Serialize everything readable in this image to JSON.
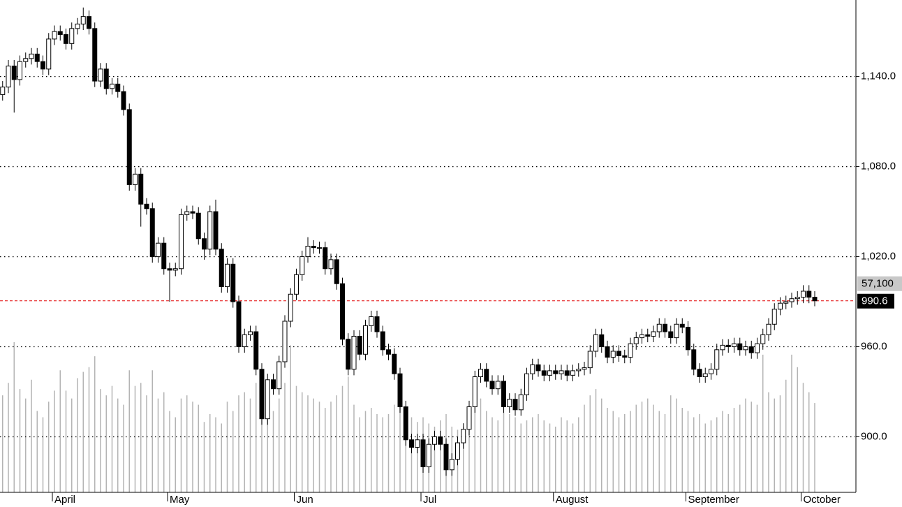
{
  "chart_data": {
    "type": "candlestick",
    "categories": [
      null,
      null,
      null,
      null,
      null,
      null,
      null,
      null,
      null,
      "April",
      null,
      null,
      null,
      null,
      null,
      null,
      null,
      null,
      null,
      null,
      null,
      null,
      null,
      null,
      null,
      null,
      null,
      null,
      null,
      "May",
      null,
      null,
      null,
      null,
      null,
      null,
      null,
      null,
      null,
      null,
      null,
      null,
      null,
      null,
      null,
      null,
      null,
      null,
      null,
      null,
      null,
      "Jun",
      null,
      null,
      null,
      null,
      null,
      null,
      null,
      null,
      null,
      null,
      null,
      null,
      null,
      null,
      null,
      null,
      null,
      null,
      null,
      null,
      null,
      "Jul",
      null,
      null,
      null,
      null,
      null,
      null,
      null,
      null,
      null,
      null,
      null,
      null,
      null,
      null,
      null,
      null,
      null,
      null,
      null,
      null,
      null,
      null,
      "August",
      null,
      null,
      null,
      null,
      null,
      null,
      null,
      null,
      null,
      null,
      null,
      null,
      null,
      null,
      null,
      null,
      null,
      null,
      null,
      null,
      null,
      null,
      "September",
      null,
      null,
      null,
      null,
      null,
      null,
      null,
      null,
      null,
      null,
      null,
      null,
      null,
      null,
      null,
      null,
      null,
      null,
      null,
      "October",
      null,
      null
    ],
    "open": [
      1128,
      1133,
      1147,
      1138,
      1150,
      1152,
      1155,
      1150,
      1145,
      1165,
      1170,
      1168,
      1162,
      1172,
      1175,
      1180,
      1172,
      1137,
      1145,
      1132,
      1135,
      1130,
      1118,
      1068,
      1075,
      1055,
      1052,
      1020,
      1029,
      1012,
      1011,
      1012,
      1048,
      1050,
      1049,
      1032,
      1025,
      1050,
      1025,
      1000,
      1015,
      990,
      960,
      968,
      970,
      945,
      912,
      938,
      932,
      950,
      977,
      995,
      1008,
      1020,
      1027,
      1026,
      1026,
      1012,
      1018,
      1002,
      965,
      945,
      967,
      955,
      974,
      980,
      970,
      958,
      955,
      942,
      920,
      898,
      893,
      898,
      880,
      895,
      900,
      895,
      878,
      885,
      896,
      905,
      920,
      940,
      945,
      937,
      932,
      937,
      920,
      925,
      918,
      928,
      942,
      948,
      944,
      941,
      944,
      942,
      944,
      941,
      944,
      945,
      946,
      957,
      968,
      960,
      953,
      957,
      954,
      953,
      962,
      966,
      968,
      967,
      970,
      975,
      970,
      966,
      975,
      973,
      958,
      945,
      940,
      942,
      945,
      958,
      961,
      960,
      962,
      958,
      960,
      956,
      962,
      968,
      975,
      985,
      989,
      990,
      992,
      993,
      997,
      993
    ],
    "high": [
      1137,
      1151,
      1151,
      1154,
      1156,
      1159,
      1159,
      1154,
      1169,
      1174,
      1174,
      1172,
      1176,
      1179,
      1186,
      1184,
      1176,
      1149,
      1149,
      1139,
      1139,
      1134,
      1122,
      1079,
      1079,
      1059,
      1056,
      1033,
      1033,
      1016,
      1016,
      1052,
      1054,
      1054,
      1053,
      1036,
      1054,
      1058,
      1029,
      1019,
      1019,
      994,
      972,
      974,
      974,
      949,
      942,
      942,
      954,
      981,
      999,
      1012,
      1024,
      1033,
      1031,
      1030,
      1030,
      1022,
      1022,
      1006,
      969,
      971,
      971,
      978,
      984,
      984,
      974,
      962,
      959,
      946,
      924,
      902,
      902,
      902,
      899,
      904,
      904,
      899,
      889,
      900,
      909,
      924,
      944,
      949,
      949,
      941,
      941,
      941,
      929,
      929,
      932,
      946,
      952,
      952,
      948,
      948,
      948,
      948,
      948,
      948,
      949,
      950,
      961,
      972,
      972,
      964,
      961,
      961,
      958,
      966,
      970,
      972,
      972,
      974,
      979,
      979,
      974,
      979,
      979,
      977,
      962,
      949,
      946,
      949,
      962,
      965,
      965,
      966,
      966,
      964,
      964,
      966,
      972,
      979,
      989,
      993,
      994,
      996,
      997,
      1001,
      1001,
      997
    ],
    "low": [
      1124,
      1129,
      1116,
      1134,
      1146,
      1148,
      1146,
      1141,
      1141,
      1161,
      1164,
      1158,
      1158,
      1168,
      1171,
      1168,
      1133,
      1133,
      1128,
      1128,
      1126,
      1114,
      1064,
      1064,
      1040,
      1048,
      1016,
      1016,
      1008,
      990,
      1007,
      1008,
      1044,
      1045,
      1028,
      1018,
      1021,
      1021,
      996,
      996,
      986,
      956,
      956,
      964,
      941,
      908,
      908,
      928,
      928,
      946,
      973,
      991,
      1004,
      1016,
      1022,
      1022,
      1008,
      1008,
      998,
      961,
      941,
      941,
      951,
      951,
      970,
      966,
      954,
      951,
      938,
      916,
      894,
      889,
      889,
      876,
      876,
      891,
      891,
      874,
      874,
      881,
      892,
      901,
      916,
      936,
      933,
      928,
      928,
      916,
      916,
      914,
      914,
      924,
      938,
      940,
      937,
      937,
      938,
      938,
      937,
      937,
      940,
      941,
      942,
      953,
      956,
      949,
      949,
      950,
      949,
      949,
      958,
      962,
      963,
      963,
      966,
      966,
      962,
      962,
      969,
      954,
      941,
      936,
      936,
      938,
      941,
      954,
      956,
      956,
      954,
      954,
      952,
      952,
      958,
      964,
      971,
      981,
      985,
      986,
      988,
      989,
      989,
      987
    ],
    "close": [
      1133,
      1147,
      1138,
      1150,
      1152,
      1155,
      1150,
      1145,
      1165,
      1170,
      1168,
      1162,
      1172,
      1175,
      1180,
      1172,
      1137,
      1145,
      1132,
      1135,
      1130,
      1118,
      1068,
      1075,
      1055,
      1052,
      1020,
      1029,
      1012,
      1011,
      1012,
      1048,
      1050,
      1049,
      1032,
      1025,
      1050,
      1025,
      1000,
      1015,
      990,
      960,
      968,
      970,
      945,
      912,
      938,
      932,
      950,
      977,
      995,
      1008,
      1020,
      1027,
      1026,
      1026,
      1012,
      1018,
      1002,
      965,
      945,
      967,
      955,
      974,
      980,
      970,
      958,
      955,
      942,
      920,
      898,
      893,
      898,
      880,
      895,
      900,
      895,
      878,
      885,
      896,
      905,
      920,
      940,
      945,
      937,
      932,
      937,
      920,
      925,
      918,
      928,
      942,
      948,
      944,
      941,
      944,
      942,
      944,
      941,
      944,
      945,
      946,
      957,
      968,
      960,
      953,
      957,
      954,
      953,
      962,
      966,
      968,
      967,
      970,
      975,
      970,
      966,
      975,
      973,
      958,
      945,
      940,
      942,
      945,
      958,
      961,
      960,
      962,
      958,
      960,
      956,
      962,
      968,
      975,
      985,
      989,
      990,
      992,
      993,
      997,
      993,
      990.6
    ],
    "volume": [
      62000,
      70000,
      96000,
      66000,
      60000,
      72000,
      52000,
      48000,
      58000,
      65000,
      78000,
      65000,
      60000,
      73000,
      77000,
      80000,
      87000,
      66000,
      62000,
      68000,
      60000,
      56000,
      78000,
      68000,
      70000,
      62000,
      78000,
      60000,
      64000,
      52000,
      48000,
      60000,
      62000,
      58000,
      56000,
      45000,
      50000,
      48000,
      44000,
      58000,
      52000,
      62000,
      64000,
      60000,
      70000,
      78000,
      60000,
      52000,
      60000,
      70000,
      94000,
      68000,
      64000,
      62000,
      60000,
      58000,
      54000,
      58000,
      62000,
      68000,
      74000,
      56000,
      48000,
      52000,
      54000,
      50000,
      48000,
      50000,
      56000,
      60000,
      54000,
      48000,
      45000,
      48000,
      44000,
      42000,
      46000,
      50000,
      42000,
      40000,
      42000,
      50000,
      56000,
      60000,
      52000,
      48000,
      46000,
      56000,
      50000,
      48000,
      44000,
      46000,
      48000,
      50000,
      46000,
      44000,
      42000,
      48000,
      46000,
      44000,
      48000,
      56000,
      62000,
      66000,
      60000,
      54000,
      52000,
      48000,
      50000,
      52000,
      56000,
      58000,
      60000,
      56000,
      52000,
      50000,
      62000,
      60000,
      54000,
      52000,
      48000,
      50000,
      44000,
      46000,
      48000,
      52000,
      50000,
      54000,
      56000,
      60000,
      58000,
      56000,
      88000,
      64000,
      60000,
      62000,
      72000,
      88000,
      80000,
      70000,
      64000,
      57100
    ],
    "last_volume_label": "57,100",
    "vlim": [
      0,
      100000
    ],
    "ylim": [
      863,
      1191
    ],
    "yticks": [
      {
        "value": 900,
        "label": "900.0"
      },
      {
        "value": 960,
        "label": "960.0"
      },
      {
        "value": 1020,
        "label": "1,020.0"
      },
      {
        "value": 1080,
        "label": "1,080.0"
      },
      {
        "value": 1140,
        "label": "1,140.0"
      }
    ],
    "grid": true,
    "up_color": "#ffffff",
    "down_color": "#000000",
    "volume_color": "#b4b4b4",
    "last_price_line_color": "#e00000"
  }
}
